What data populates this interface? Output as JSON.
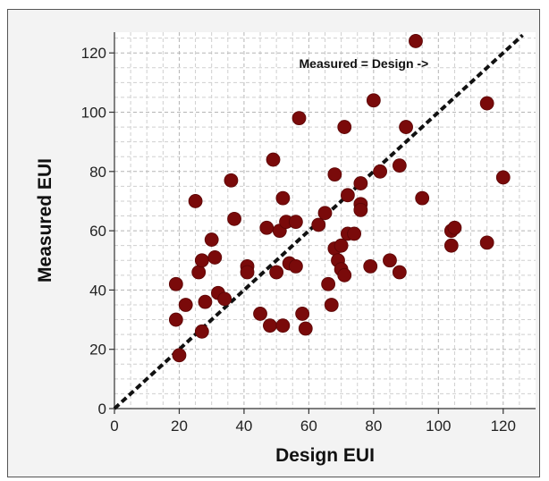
{
  "chart_data": {
    "type": "scatter",
    "xlabel": "Design EUI",
    "ylabel": "Measured EUI",
    "xlim": [
      0,
      130
    ],
    "ylim": [
      0,
      127
    ],
    "xticks": [
      0,
      20,
      40,
      60,
      80,
      100,
      120
    ],
    "yticks": [
      0,
      20,
      40,
      60,
      80,
      100,
      120
    ],
    "xtick_labels": [
      "0",
      "20",
      "40",
      "60",
      "80",
      "100",
      "120"
    ],
    "ytick_labels": [
      "0",
      "20",
      "40",
      "60",
      "80",
      "100",
      "120"
    ],
    "grid": true,
    "marker_color": "#7a0a0a",
    "reference_line": {
      "x": [
        0,
        126
      ],
      "y": [
        0,
        126
      ],
      "style": "dashed",
      "color": "#111111"
    },
    "annotation": "Measured = Design  ->",
    "points": [
      {
        "x": 19,
        "y": 42
      },
      {
        "x": 19,
        "y": 30
      },
      {
        "x": 20,
        "y": 18
      },
      {
        "x": 22,
        "y": 35
      },
      {
        "x": 25,
        "y": 70
      },
      {
        "x": 26,
        "y": 46
      },
      {
        "x": 27,
        "y": 50
      },
      {
        "x": 27,
        "y": 26
      },
      {
        "x": 28,
        "y": 36
      },
      {
        "x": 30,
        "y": 57
      },
      {
        "x": 31,
        "y": 51
      },
      {
        "x": 32,
        "y": 39
      },
      {
        "x": 34,
        "y": 37
      },
      {
        "x": 36,
        "y": 77
      },
      {
        "x": 37,
        "y": 64
      },
      {
        "x": 41,
        "y": 48
      },
      {
        "x": 41,
        "y": 46
      },
      {
        "x": 45,
        "y": 32
      },
      {
        "x": 47,
        "y": 61
      },
      {
        "x": 48,
        "y": 28
      },
      {
        "x": 49,
        "y": 84
      },
      {
        "x": 50,
        "y": 46
      },
      {
        "x": 51,
        "y": 60
      },
      {
        "x": 52,
        "y": 28
      },
      {
        "x": 52,
        "y": 71
      },
      {
        "x": 53,
        "y": 63
      },
      {
        "x": 54,
        "y": 49
      },
      {
        "x": 56,
        "y": 63
      },
      {
        "x": 56,
        "y": 48
      },
      {
        "x": 57,
        "y": 98
      },
      {
        "x": 58,
        "y": 32
      },
      {
        "x": 59,
        "y": 27
      },
      {
        "x": 63,
        "y": 62
      },
      {
        "x": 65,
        "y": 66
      },
      {
        "x": 66,
        "y": 42
      },
      {
        "x": 67,
        "y": 35
      },
      {
        "x": 68,
        "y": 79
      },
      {
        "x": 68,
        "y": 54
      },
      {
        "x": 69,
        "y": 50
      },
      {
        "x": 70,
        "y": 55
      },
      {
        "x": 70,
        "y": 47
      },
      {
        "x": 71,
        "y": 45
      },
      {
        "x": 71,
        "y": 95
      },
      {
        "x": 72,
        "y": 72
      },
      {
        "x": 72,
        "y": 59
      },
      {
        "x": 74,
        "y": 59
      },
      {
        "x": 76,
        "y": 76
      },
      {
        "x": 76,
        "y": 69
      },
      {
        "x": 76,
        "y": 67
      },
      {
        "x": 79,
        "y": 48
      },
      {
        "x": 80,
        "y": 104
      },
      {
        "x": 82,
        "y": 80
      },
      {
        "x": 85,
        "y": 50
      },
      {
        "x": 88,
        "y": 46
      },
      {
        "x": 88,
        "y": 82
      },
      {
        "x": 90,
        "y": 95
      },
      {
        "x": 93,
        "y": 124
      },
      {
        "x": 95,
        "y": 71
      },
      {
        "x": 104,
        "y": 55
      },
      {
        "x": 104,
        "y": 60
      },
      {
        "x": 105,
        "y": 61
      },
      {
        "x": 115,
        "y": 103
      },
      {
        "x": 115,
        "y": 56
      },
      {
        "x": 120,
        "y": 78
      }
    ]
  }
}
